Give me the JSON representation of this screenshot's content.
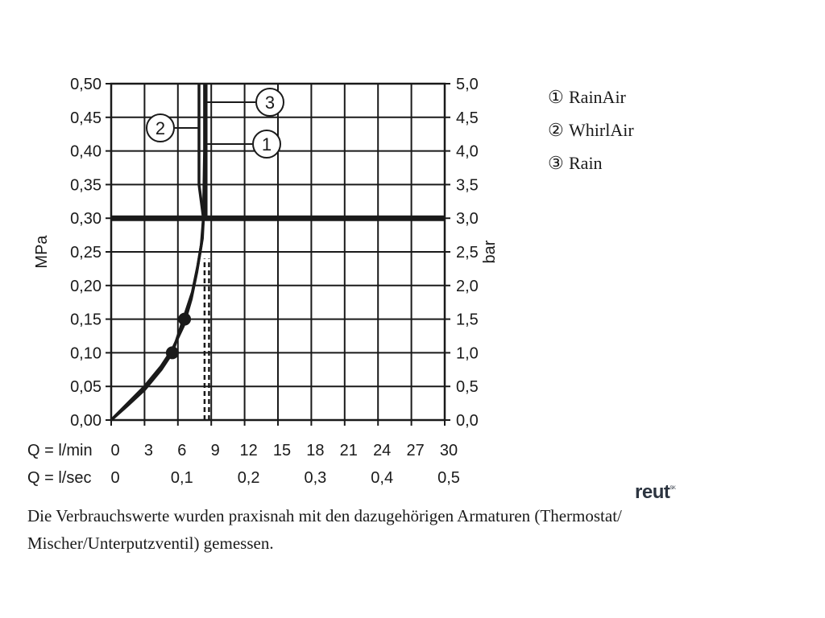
{
  "chart_data": {
    "type": "line",
    "left_axis": {
      "label": "MPa",
      "ylim": [
        0,
        0.5
      ],
      "ticks": [
        "0,00",
        "0,05",
        "0,10",
        "0,15",
        "0,20",
        "0,25",
        "0,30",
        "0,35",
        "0,40",
        "0,45",
        "0,50"
      ]
    },
    "right_axis": {
      "label": "bar",
      "ylim": [
        0,
        5
      ],
      "ticks": [
        "0,0",
        "0,5",
        "1,0",
        "1,5",
        "2,0",
        "2,5",
        "3,0",
        "3,5",
        "4,0",
        "4,5",
        "5,0"
      ]
    },
    "x_axis_lmin": {
      "label": "Q = l/min",
      "xlim": [
        0,
        30
      ],
      "ticks": [
        "0",
        "3",
        "6",
        "9",
        "12",
        "15",
        "18",
        "21",
        "24",
        "27",
        "30"
      ],
      "tick_values": [
        0,
        3,
        6,
        9,
        12,
        15,
        18,
        21,
        24,
        27,
        30
      ]
    },
    "x_axis_lsec": {
      "label": "Q = l/sec",
      "ticks": [
        "0",
        "0,1",
        "0,2",
        "0,3",
        "0,4",
        "0,5"
      ],
      "tick_values": [
        0,
        6,
        12,
        18,
        24,
        30
      ]
    },
    "grid": true,
    "reference_line_mpa": 0.3,
    "series": [
      {
        "name": "RainAir",
        "marker": "1",
        "x": [
          0,
          1.5,
          3,
          4.5,
          5.5,
          6.5,
          7.2,
          7.7,
          8.1,
          8.3,
          8.4,
          8.4
        ],
        "y": [
          0,
          0.025,
          0.05,
          0.08,
          0.105,
          0.14,
          0.18,
          0.22,
          0.26,
          0.3,
          0.4,
          0.5
        ]
      },
      {
        "name": "WhirlAir",
        "marker": "2",
        "x": [
          0,
          1.5,
          3,
          4.5,
          5.5,
          6.5,
          7.3,
          7.8,
          8.2,
          8.3,
          7.9,
          7.9
        ],
        "y": [
          0,
          0.022,
          0.045,
          0.075,
          0.1,
          0.15,
          0.19,
          0.23,
          0.27,
          0.3,
          0.35,
          0.5
        ]
      },
      {
        "name": "Rain",
        "marker": "3",
        "x": [
          8.5,
          8.5
        ],
        "y": [
          0.3,
          0.5
        ]
      }
    ],
    "dashed_lines": [
      {
        "x": 8.4,
        "y": [
          0,
          0.24
        ]
      },
      {
        "x": 8.8,
        "y": [
          0,
          0.24
        ]
      }
    ],
    "points": [
      {
        "x": 5.5,
        "y": 0.1
      },
      {
        "x": 6.6,
        "y": 0.15
      }
    ],
    "callouts": [
      {
        "label": "3",
        "series": "Rain"
      },
      {
        "label": "2",
        "series": "WhirlAir"
      },
      {
        "label": "1",
        "series": "RainAir"
      }
    ]
  },
  "legend": [
    {
      "symbol": "①",
      "label": "RainAir"
    },
    {
      "symbol": "②",
      "label": "WhirlAir"
    },
    {
      "symbol": "③",
      "label": "Rain"
    }
  ],
  "logo": {
    "text": "reut",
    "sup": "SK"
  },
  "footnote": "Die Verbrauchswerte wurden praxisnah mit den dazugehörigen Armaturen (Thermostat/ Mischer/Unterputzventil) gemessen."
}
